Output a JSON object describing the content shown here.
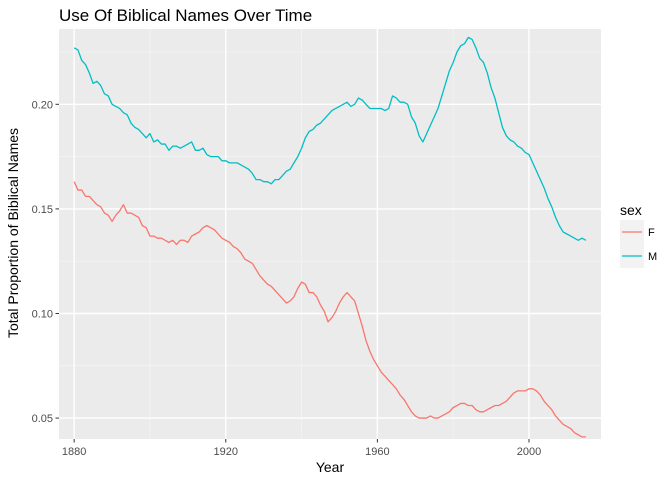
{
  "chart_data": {
    "type": "line",
    "title": "Use Of Biblical Names Over Time",
    "xlabel": "Year",
    "ylabel": "Total Proportion of Biblical Names",
    "xlim": [
      1876,
      2019
    ],
    "ylim": [
      0.04,
      0.236
    ],
    "xticks": [
      1880,
      1920,
      1960,
      2000
    ],
    "yticks": [
      0.05,
      0.1,
      0.15,
      0.2
    ],
    "ytick_labels": [
      "0.05",
      "0.10",
      "0.15",
      "0.20"
    ],
    "grid": true,
    "legend": {
      "title": "sex",
      "position": "right"
    },
    "series": [
      {
        "name": "F",
        "color": "#F8766D",
        "points": [
          [
            1880,
            0.163
          ],
          [
            1881,
            0.159
          ],
          [
            1882,
            0.159
          ],
          [
            1883,
            0.156
          ],
          [
            1884,
            0.156
          ],
          [
            1885,
            0.154
          ],
          [
            1886,
            0.152
          ],
          [
            1887,
            0.151
          ],
          [
            1888,
            0.148
          ],
          [
            1889,
            0.147
          ],
          [
            1890,
            0.144
          ],
          [
            1891,
            0.147
          ],
          [
            1892,
            0.149
          ],
          [
            1893,
            0.152
          ],
          [
            1894,
            0.148
          ],
          [
            1895,
            0.148
          ],
          [
            1896,
            0.147
          ],
          [
            1897,
            0.146
          ],
          [
            1898,
            0.142
          ],
          [
            1899,
            0.141
          ],
          [
            1900,
            0.137
          ],
          [
            1901,
            0.137
          ],
          [
            1902,
            0.136
          ],
          [
            1903,
            0.136
          ],
          [
            1904,
            0.135
          ],
          [
            1905,
            0.134
          ],
          [
            1906,
            0.135
          ],
          [
            1907,
            0.133
          ],
          [
            1908,
            0.135
          ],
          [
            1909,
            0.135
          ],
          [
            1910,
            0.134
          ],
          [
            1911,
            0.137
          ],
          [
            1912,
            0.138
          ],
          [
            1913,
            0.139
          ],
          [
            1914,
            0.141
          ],
          [
            1915,
            0.142
          ],
          [
            1916,
            0.141
          ],
          [
            1917,
            0.14
          ],
          [
            1918,
            0.138
          ],
          [
            1919,
            0.136
          ],
          [
            1920,
            0.135
          ],
          [
            1921,
            0.134
          ],
          [
            1922,
            0.132
          ],
          [
            1923,
            0.131
          ],
          [
            1924,
            0.129
          ],
          [
            1925,
            0.126
          ],
          [
            1926,
            0.125
          ],
          [
            1927,
            0.124
          ],
          [
            1928,
            0.121
          ],
          [
            1929,
            0.118
          ],
          [
            1930,
            0.116
          ],
          [
            1931,
            0.114
          ],
          [
            1932,
            0.113
          ],
          [
            1933,
            0.111
          ],
          [
            1934,
            0.109
          ],
          [
            1935,
            0.107
          ],
          [
            1936,
            0.105
          ],
          [
            1937,
            0.106
          ],
          [
            1938,
            0.108
          ],
          [
            1939,
            0.112
          ],
          [
            1940,
            0.115
          ],
          [
            1941,
            0.114
          ],
          [
            1942,
            0.11
          ],
          [
            1943,
            0.11
          ],
          [
            1944,
            0.108
          ],
          [
            1945,
            0.104
          ],
          [
            1946,
            0.101
          ],
          [
            1947,
            0.096
          ],
          [
            1948,
            0.098
          ],
          [
            1949,
            0.101
          ],
          [
            1950,
            0.105
          ],
          [
            1951,
            0.108
          ],
          [
            1952,
            0.11
          ],
          [
            1953,
            0.108
          ],
          [
            1954,
            0.106
          ],
          [
            1955,
            0.1
          ],
          [
            1956,
            0.094
          ],
          [
            1957,
            0.087
          ],
          [
            1958,
            0.082
          ],
          [
            1959,
            0.078
          ],
          [
            1960,
            0.075
          ],
          [
            1961,
            0.072
          ],
          [
            1962,
            0.07
          ],
          [
            1963,
            0.068
          ],
          [
            1964,
            0.066
          ],
          [
            1965,
            0.064
          ],
          [
            1966,
            0.061
          ],
          [
            1967,
            0.059
          ],
          [
            1968,
            0.056
          ],
          [
            1969,
            0.053
          ],
          [
            1970,
            0.051
          ],
          [
            1971,
            0.05
          ],
          [
            1972,
            0.05
          ],
          [
            1973,
            0.05
          ],
          [
            1974,
            0.051
          ],
          [
            1975,
            0.05
          ],
          [
            1976,
            0.05
          ],
          [
            1977,
            0.051
          ],
          [
            1978,
            0.052
          ],
          [
            1979,
            0.053
          ],
          [
            1980,
            0.055
          ],
          [
            1981,
            0.056
          ],
          [
            1982,
            0.057
          ],
          [
            1983,
            0.057
          ],
          [
            1984,
            0.056
          ],
          [
            1985,
            0.056
          ],
          [
            1986,
            0.054
          ],
          [
            1987,
            0.053
          ],
          [
            1988,
            0.053
          ],
          [
            1989,
            0.054
          ],
          [
            1990,
            0.055
          ],
          [
            1991,
            0.056
          ],
          [
            1992,
            0.056
          ],
          [
            1993,
            0.057
          ],
          [
            1994,
            0.058
          ],
          [
            1995,
            0.06
          ],
          [
            1996,
            0.062
          ],
          [
            1997,
            0.063
          ],
          [
            1998,
            0.063
          ],
          [
            1999,
            0.063
          ],
          [
            2000,
            0.064
          ],
          [
            2001,
            0.064
          ],
          [
            2002,
            0.063
          ],
          [
            2003,
            0.061
          ],
          [
            2004,
            0.058
          ],
          [
            2005,
            0.056
          ],
          [
            2006,
            0.054
          ],
          [
            2007,
            0.051
          ],
          [
            2008,
            0.049
          ],
          [
            2009,
            0.047
          ],
          [
            2010,
            0.046
          ],
          [
            2011,
            0.045
          ],
          [
            2012,
            0.043
          ],
          [
            2013,
            0.042
          ],
          [
            2014,
            0.041
          ],
          [
            2015,
            0.041
          ]
        ]
      },
      {
        "name": "M",
        "color": "#00BFC4",
        "points": [
          [
            1880,
            0.227
          ],
          [
            1881,
            0.226
          ],
          [
            1882,
            0.221
          ],
          [
            1883,
            0.219
          ],
          [
            1884,
            0.215
          ],
          [
            1885,
            0.21
          ],
          [
            1886,
            0.211
          ],
          [
            1887,
            0.209
          ],
          [
            1888,
            0.205
          ],
          [
            1889,
            0.204
          ],
          [
            1890,
            0.2
          ],
          [
            1891,
            0.199
          ],
          [
            1892,
            0.198
          ],
          [
            1893,
            0.196
          ],
          [
            1894,
            0.195
          ],
          [
            1895,
            0.191
          ],
          [
            1896,
            0.189
          ],
          [
            1897,
            0.188
          ],
          [
            1898,
            0.186
          ],
          [
            1899,
            0.184
          ],
          [
            1900,
            0.186
          ],
          [
            1901,
            0.182
          ],
          [
            1902,
            0.183
          ],
          [
            1903,
            0.181
          ],
          [
            1904,
            0.181
          ],
          [
            1905,
            0.178
          ],
          [
            1906,
            0.18
          ],
          [
            1907,
            0.18
          ],
          [
            1908,
            0.179
          ],
          [
            1909,
            0.18
          ],
          [
            1910,
            0.181
          ],
          [
            1911,
            0.182
          ],
          [
            1912,
            0.178
          ],
          [
            1913,
            0.178
          ],
          [
            1914,
            0.179
          ],
          [
            1915,
            0.176
          ],
          [
            1916,
            0.175
          ],
          [
            1917,
            0.175
          ],
          [
            1918,
            0.175
          ],
          [
            1919,
            0.173
          ],
          [
            1920,
            0.173
          ],
          [
            1921,
            0.172
          ],
          [
            1922,
            0.172
          ],
          [
            1923,
            0.172
          ],
          [
            1924,
            0.171
          ],
          [
            1925,
            0.17
          ],
          [
            1926,
            0.169
          ],
          [
            1927,
            0.167
          ],
          [
            1928,
            0.164
          ],
          [
            1929,
            0.164
          ],
          [
            1930,
            0.163
          ],
          [
            1931,
            0.163
          ],
          [
            1932,
            0.162
          ],
          [
            1933,
            0.164
          ],
          [
            1934,
            0.164
          ],
          [
            1935,
            0.166
          ],
          [
            1936,
            0.168
          ],
          [
            1937,
            0.169
          ],
          [
            1938,
            0.172
          ],
          [
            1939,
            0.175
          ],
          [
            1940,
            0.179
          ],
          [
            1941,
            0.184
          ],
          [
            1942,
            0.187
          ],
          [
            1943,
            0.188
          ],
          [
            1944,
            0.19
          ],
          [
            1945,
            0.191
          ],
          [
            1946,
            0.193
          ],
          [
            1947,
            0.195
          ],
          [
            1948,
            0.197
          ],
          [
            1949,
            0.198
          ],
          [
            1950,
            0.199
          ],
          [
            1951,
            0.2
          ],
          [
            1952,
            0.201
          ],
          [
            1953,
            0.199
          ],
          [
            1954,
            0.2
          ],
          [
            1955,
            0.203
          ],
          [
            1956,
            0.202
          ],
          [
            1957,
            0.2
          ],
          [
            1958,
            0.198
          ],
          [
            1959,
            0.198
          ],
          [
            1960,
            0.198
          ],
          [
            1961,
            0.198
          ],
          [
            1962,
            0.197
          ],
          [
            1963,
            0.198
          ],
          [
            1964,
            0.204
          ],
          [
            1965,
            0.203
          ],
          [
            1966,
            0.201
          ],
          [
            1967,
            0.201
          ],
          [
            1968,
            0.2
          ],
          [
            1969,
            0.194
          ],
          [
            1970,
            0.191
          ],
          [
            1971,
            0.185
          ],
          [
            1972,
            0.182
          ],
          [
            1973,
            0.186
          ],
          [
            1974,
            0.19
          ],
          [
            1975,
            0.194
          ],
          [
            1976,
            0.198
          ],
          [
            1977,
            0.204
          ],
          [
            1978,
            0.21
          ],
          [
            1979,
            0.216
          ],
          [
            1980,
            0.22
          ],
          [
            1981,
            0.225
          ],
          [
            1982,
            0.228
          ],
          [
            1983,
            0.229
          ],
          [
            1984,
            0.232
          ],
          [
            1985,
            0.231
          ],
          [
            1986,
            0.227
          ],
          [
            1987,
            0.222
          ],
          [
            1988,
            0.22
          ],
          [
            1989,
            0.215
          ],
          [
            1990,
            0.208
          ],
          [
            1991,
            0.203
          ],
          [
            1992,
            0.196
          ],
          [
            1993,
            0.189
          ],
          [
            1994,
            0.185
          ],
          [
            1995,
            0.183
          ],
          [
            1996,
            0.182
          ],
          [
            1997,
            0.18
          ],
          [
            1998,
            0.179
          ],
          [
            1999,
            0.177
          ],
          [
            2000,
            0.176
          ],
          [
            2001,
            0.172
          ],
          [
            2002,
            0.168
          ],
          [
            2003,
            0.164
          ],
          [
            2004,
            0.16
          ],
          [
            2005,
            0.155
          ],
          [
            2006,
            0.151
          ],
          [
            2007,
            0.146
          ],
          [
            2008,
            0.142
          ],
          [
            2009,
            0.139
          ],
          [
            2010,
            0.138
          ],
          [
            2011,
            0.137
          ],
          [
            2012,
            0.136
          ],
          [
            2013,
            0.135
          ],
          [
            2014,
            0.136
          ],
          [
            2015,
            0.135
          ]
        ]
      }
    ]
  }
}
